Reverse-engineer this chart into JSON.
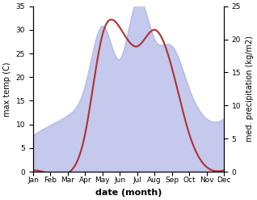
{
  "months": [
    "Jan",
    "Feb",
    "Mar",
    "Apr",
    "May",
    "Jun",
    "Jul",
    "Aug",
    "Sep",
    "Oct",
    "Nov",
    "Dec"
  ],
  "month_x": [
    1,
    2,
    3,
    4,
    5,
    6,
    7,
    8,
    9,
    10,
    11,
    12
  ],
  "temperature": [
    0.3,
    -0.5,
    -0.3,
    8.0,
    29.0,
    30.5,
    26.5,
    30.0,
    22.0,
    8.0,
    1.0,
    0.3
  ],
  "precipitation": [
    5.5,
    7.0,
    8.5,
    13.0,
    22.0,
    17.0,
    26.0,
    20.0,
    19.0,
    12.5,
    8.0,
    8.0
  ],
  "temp_color": "#b03030",
  "precip_fill_color": "#b0b8e8",
  "ylabel_left": "max temp (C)",
  "ylabel_right": "med. precipitation (kg/m2)",
  "xlabel": "date (month)",
  "ylim_left": [
    0,
    35
  ],
  "ylim_right": [
    0,
    25
  ],
  "yticks_left": [
    0,
    5,
    10,
    15,
    20,
    25,
    30,
    35
  ],
  "yticks_right": [
    0,
    5,
    10,
    15,
    20,
    25
  ],
  "background_color": "#ffffff",
  "axis_fontsize": 7,
  "tick_fontsize": 6.5,
  "xlabel_fontsize": 8,
  "xlabel_fontweight": "bold",
  "smooth_points": 300
}
